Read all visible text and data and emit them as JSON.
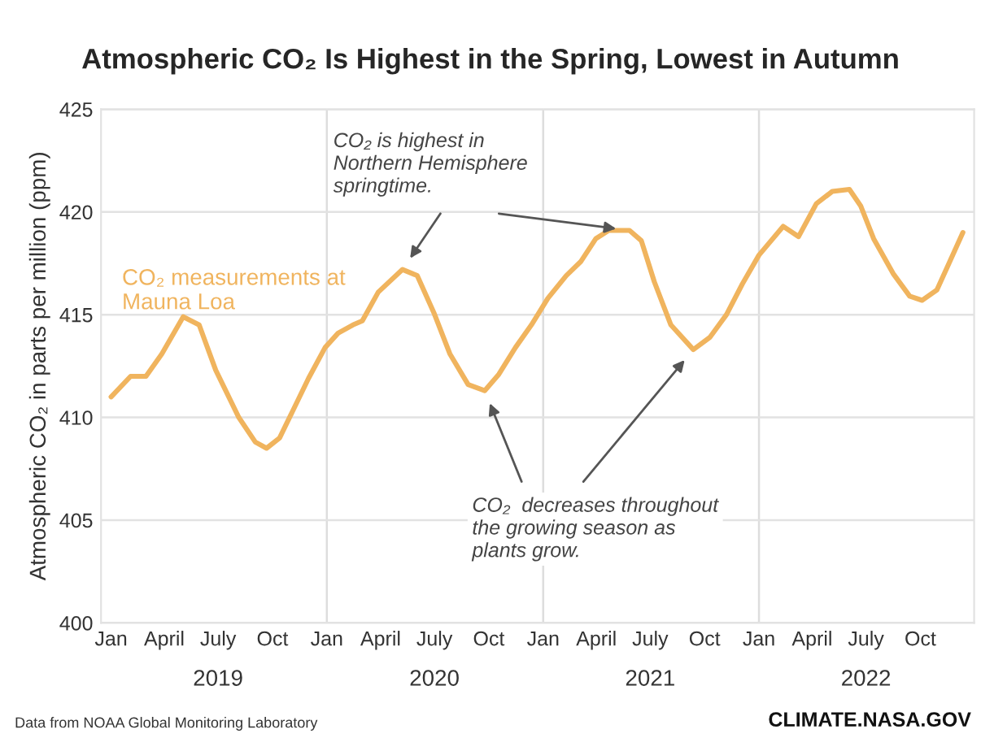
{
  "chart_data": {
    "type": "line",
    "title": "Atmospheric CO₂ Is Highest in the Spring, Lowest in Autumn",
    "ylabel": "Atmospheric CO₂ in parts per million (ppm)",
    "x": [
      "2019-01-01",
      "2019-02-03",
      "2019-03-01",
      "2019-03-28",
      "2019-05-03",
      "2019-05-30",
      "2019-06-27",
      "2019-08-05",
      "2019-09-02",
      "2019-09-21",
      "2019-10-13",
      "2019-11-04",
      "2019-12-01",
      "2019-12-29",
      "2020-01-20",
      "2020-02-14",
      "2020-03-01",
      "2020-03-28",
      "2020-05-08",
      "2020-06-02",
      "2020-06-30",
      "2020-07-27",
      "2020-08-27",
      "2020-09-24",
      "2020-10-18",
      "2020-11-15",
      "2020-12-12",
      "2021-01-09",
      "2021-02-09",
      "2021-03-06",
      "2021-03-31",
      "2021-04-22",
      "2021-05-27",
      "2021-06-16",
      "2021-07-08",
      "2021-08-05",
      "2021-09-12",
      "2021-10-10",
      "2021-11-07",
      "2021-12-04",
      "2022-01-01",
      "2022-02-11",
      "2022-03-09",
      "2022-04-08",
      "2022-05-05",
      "2022-06-03",
      "2022-06-22",
      "2022-07-14",
      "2022-08-16",
      "2022-09-13",
      "2022-10-04",
      "2022-10-29",
      "2022-11-20",
      "2022-12-12"
    ],
    "series": [
      {
        "name": "CO₂ measurements at\nMauna Loa",
        "color": "#f0b45e",
        "values": [
          411.0,
          412.0,
          412.0,
          413.1,
          414.9,
          414.5,
          412.3,
          410.0,
          408.8,
          408.5,
          409.0,
          410.3,
          411.9,
          413.4,
          414.1,
          414.5,
          414.7,
          416.1,
          417.2,
          416.9,
          415.1,
          413.1,
          411.6,
          411.3,
          412.1,
          413.4,
          414.5,
          415.8,
          416.9,
          417.6,
          418.7,
          419.1,
          419.1,
          418.6,
          416.6,
          414.5,
          413.3,
          413.9,
          415.0,
          416.5,
          417.9,
          419.3,
          418.8,
          420.4,
          421.0,
          421.1,
          420.3,
          418.7,
          417.0,
          415.9,
          415.7,
          416.2,
          417.6,
          419.0
        ]
      }
    ],
    "xlim": [
      "2018-12-15",
      "2022-12-31"
    ],
    "xticks": [
      {
        "value": "2019-01-01",
        "label": "Jan"
      },
      {
        "value": "2019-04-01",
        "label": "April"
      },
      {
        "value": "2019-07-01",
        "label": "July"
      },
      {
        "value": "2019-10-01",
        "label": "Oct"
      },
      {
        "value": "2020-01-01",
        "label": "Jan"
      },
      {
        "value": "2020-04-01",
        "label": "April"
      },
      {
        "value": "2020-07-01",
        "label": "July"
      },
      {
        "value": "2020-10-01",
        "label": "Oct"
      },
      {
        "value": "2021-01-01",
        "label": "Jan"
      },
      {
        "value": "2021-04-01",
        "label": "April"
      },
      {
        "value": "2021-07-01",
        "label": "July"
      },
      {
        "value": "2021-10-01",
        "label": "Oct"
      },
      {
        "value": "2022-01-01",
        "label": "Jan"
      },
      {
        "value": "2022-04-01",
        "label": "April"
      },
      {
        "value": "2022-07-01",
        "label": "July"
      },
      {
        "value": "2022-10-01",
        "label": "Oct"
      }
    ],
    "x2ticks": [
      {
        "value": "2019-07-01",
        "label": "2019"
      },
      {
        "value": "2020-07-01",
        "label": "2020"
      },
      {
        "value": "2021-07-01",
        "label": "2021"
      },
      {
        "value": "2022-07-01",
        "label": "2022"
      }
    ],
    "x2lim": [
      "2018-12-15",
      "2022-12-31"
    ],
    "ylim": [
      400,
      425
    ],
    "yticks": [
      400,
      405,
      410,
      415,
      420,
      425
    ],
    "grid": "y",
    "ref_lines": [
      {
        "axis": "x",
        "value": "2020-01-01",
        "color": "#dddddd"
      },
      {
        "axis": "x",
        "value": "2021-01-01",
        "color": "#dddddd"
      },
      {
        "axis": "x",
        "value": "2022-01-01",
        "color": "#dddddd"
      }
    ],
    "annotations": [
      "CO₂ is highest in\nNorthern Hemisphere\nspringtime.",
      "CO₂  decreases throughout\nthe growing season as\nplants grow.",
      "Data from NOAA Global Monitoring Laboratory",
      "CLIMATE.NASA.GOV"
    ]
  }
}
